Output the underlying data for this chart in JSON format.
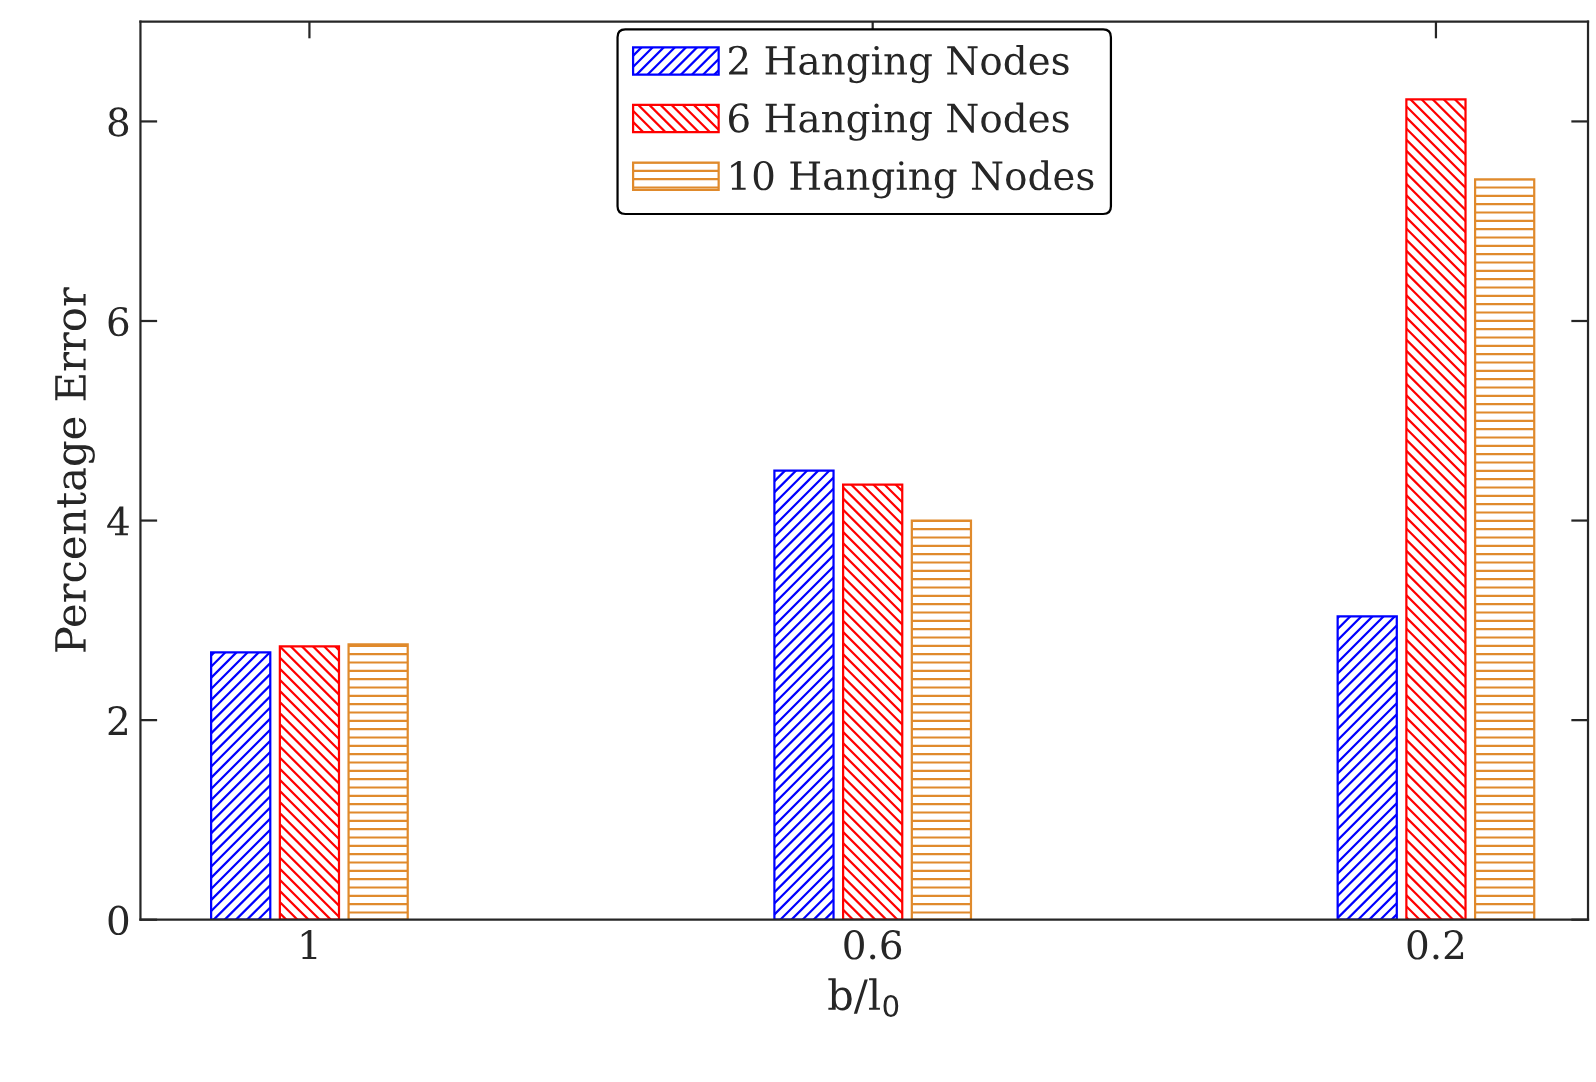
{
  "chart_data": {
    "type": "bar",
    "xlabel": "b/l$_{0}$",
    "ylabel": "Percentage Error",
    "categories": [
      "1",
      "0.6",
      "0.2"
    ],
    "series": [
      {
        "name": "2 Hanging Nodes",
        "color": "#0000ff",
        "values": [
          2.68,
          4.5,
          3.04
        ]
      },
      {
        "name": "6 Hanging Nodes",
        "color": "#ff0000",
        "values": [
          2.74,
          4.36,
          8.22
        ]
      },
      {
        "name": "10 Hanging Nodes",
        "color": "#e08a2c",
        "values": [
          2.76,
          4.0,
          7.42
        ]
      }
    ],
    "ylim": [
      0,
      9
    ],
    "yticks": [
      0,
      2,
      4,
      6,
      8
    ],
    "grid": false,
    "legend": "top"
  }
}
